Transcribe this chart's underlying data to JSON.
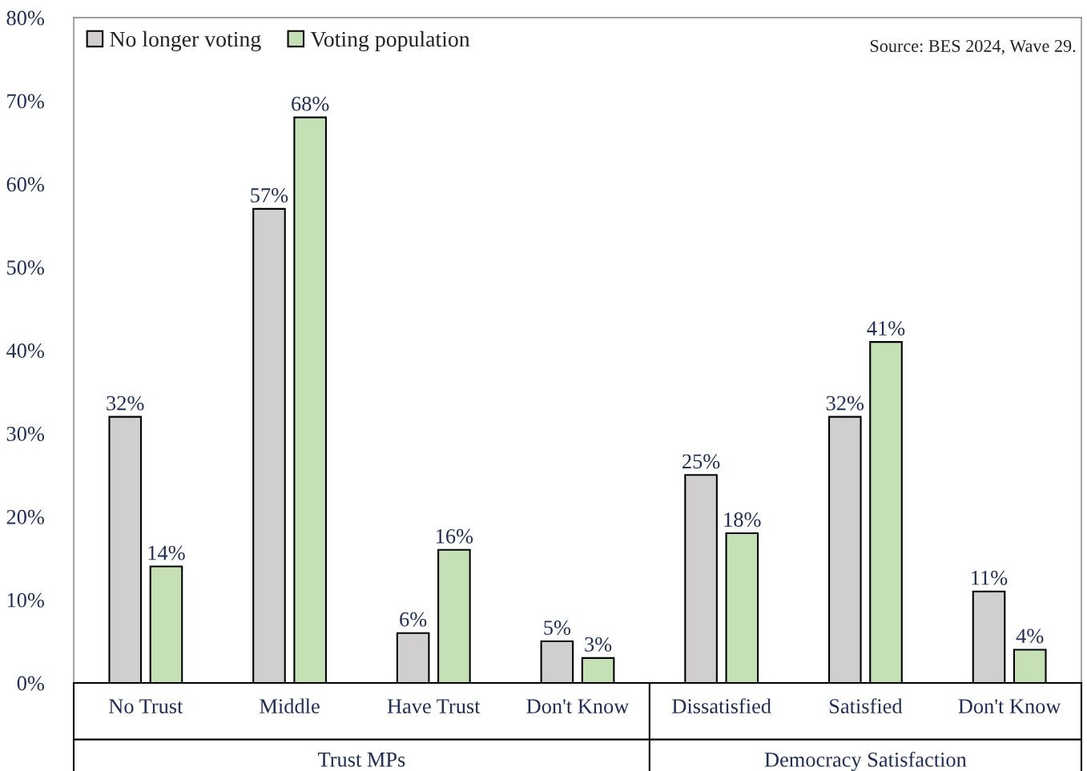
{
  "chart_data": {
    "type": "bar",
    "categories": [
      "No Trust",
      "Middle",
      "Have Trust",
      "Don't Know",
      "Dissatisfied",
      "Satisfied",
      "Don't Know"
    ],
    "series": [
      {
        "name": "No longer voting",
        "color": "#d0cece",
        "values": [
          32,
          57,
          6,
          5,
          25,
          32,
          11
        ],
        "value_labels": [
          "32%",
          "57%",
          "6%",
          "5%",
          "25%",
          "32%",
          "11%"
        ]
      },
      {
        "name": "Voting population",
        "color": "#c5e0b4",
        "values": [
          14,
          68,
          16,
          3,
          18,
          41,
          4
        ],
        "value_labels": [
          "14%",
          "68%",
          "16%",
          "3%",
          "18%",
          "41%",
          "4%"
        ]
      }
    ],
    "ylim": [
      0,
      80
    ],
    "yticks": [
      {
        "value": 0,
        "label": "0%"
      },
      {
        "value": 10,
        "label": "10%"
      },
      {
        "value": 20,
        "label": "20%"
      },
      {
        "value": 30,
        "label": "30%"
      },
      {
        "value": 40,
        "label": "40%"
      },
      {
        "value": 50,
        "label": "50%"
      },
      {
        "value": 60,
        "label": "60%"
      },
      {
        "value": 70,
        "label": "70%"
      },
      {
        "value": 80,
        "label": "80%"
      }
    ],
    "grid": false,
    "legend": "top left",
    "annotations": [
      "Source: BES 2024, Wave 29.",
      "Trust MPs",
      "Democracy Satisfaction"
    ]
  }
}
